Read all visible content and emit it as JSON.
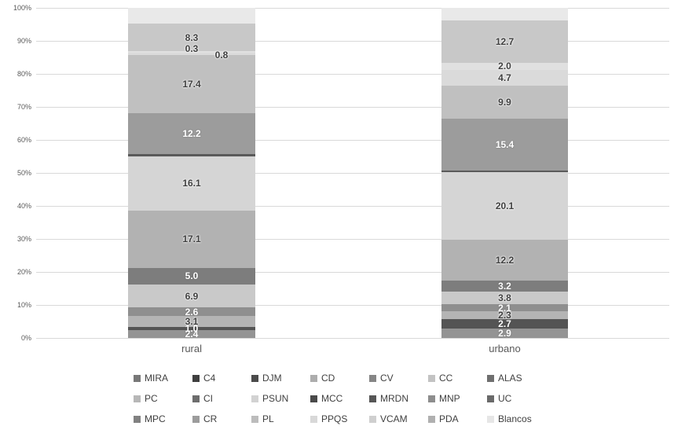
{
  "chart_data": {
    "type": "stacked_bar_100",
    "title": "",
    "categories": [
      "rural",
      "urbano"
    ],
    "y_axis": {
      "ticks": [
        "0%",
        "10%",
        "20%",
        "30%",
        "40%",
        "50%",
        "60%",
        "70%",
        "80%",
        "90%",
        "100%"
      ],
      "min": 0,
      "max": 100,
      "grid": true
    },
    "bars": [
      {
        "category": "rural",
        "segments": [
          {
            "series": "MIRA",
            "value": 2.4,
            "label": "2.4",
            "color": "#949494",
            "label_color": "#ffffff"
          },
          {
            "series": "C4",
            "value": 1.0,
            "label": "1.0",
            "color": "#545454",
            "label_color": "#ffffff"
          },
          {
            "series": "CD",
            "value": 3.1,
            "label": "3.1",
            "color": "#b4b4b4",
            "label_color": "#3f3f3f"
          },
          {
            "series": "CV",
            "value": 2.6,
            "label": "2.6",
            "color": "#8f8f8f",
            "label_color": "#ffffff"
          },
          {
            "series": "CC",
            "value": 6.9,
            "label": "6.9",
            "color": "#c9c9c9",
            "label_color": "#3f3f3f"
          },
          {
            "series": "ALAS",
            "value": 5.0,
            "label": "5.0",
            "color": "#7d7d7d",
            "label_color": "#ffffff"
          },
          {
            "series": "PC",
            "value": 17.1,
            "label": "17.1",
            "color": "#b2b2b2",
            "label_color": "#3f3f3f"
          },
          {
            "series": "PSUN",
            "value": 16.1,
            "label": "16.1",
            "color": "#d5d5d5",
            "label_color": "#3f3f3f"
          },
          {
            "series": "MCC",
            "value": 0.7,
            "label": "",
            "color": "#5a5a5a",
            "label_color": "#ffffff"
          },
          {
            "series": "MNP",
            "value": 12.2,
            "label": "12.2",
            "color": "#9c9c9c",
            "label_color": "#ffffff"
          },
          {
            "series": "PL",
            "value": 17.4,
            "label": "17.4",
            "color": "#c0c0c0",
            "label_color": "#3f3f3f"
          },
          {
            "series": "PPQS",
            "value": 0.8,
            "label": "0.8",
            "color": "#dadada",
            "label_color": "#3f3f3f",
            "dx": 38,
            "dy": 2
          },
          {
            "series": "VCAM",
            "value": 0.3,
            "label": "0.3",
            "color": "#e0e0e0",
            "label_color": "#3f3f3f",
            "dy": -4
          },
          {
            "series": "PDA",
            "value": 8.3,
            "label": "8.3",
            "color": "#c8c8c8",
            "label_color": "#3f3f3f"
          },
          {
            "series": "Blancos",
            "value": 4.7,
            "label": "",
            "color": "#e9e9e9",
            "label_color": "#3f3f3f"
          }
        ]
      },
      {
        "category": "urbano",
        "segments": [
          {
            "series": "MIRA",
            "value": 2.9,
            "label": "2.9",
            "color": "#949494",
            "label_color": "#ffffff"
          },
          {
            "series": "C4",
            "value": 2.7,
            "label": "2.7",
            "color": "#545454",
            "label_color": "#ffffff"
          },
          {
            "series": "CD",
            "value": 2.3,
            "label": "2.3",
            "color": "#b4b4b4",
            "label_color": "#3f3f3f"
          },
          {
            "series": "CV",
            "value": 2.1,
            "label": "2.1",
            "color": "#8f8f8f",
            "label_color": "#ffffff"
          },
          {
            "series": "CC",
            "value": 3.8,
            "label": "3.8",
            "color": "#c9c9c9",
            "label_color": "#3f3f3f"
          },
          {
            "series": "ALAS",
            "value": 3.2,
            "label": "3.2",
            "color": "#7d7d7d",
            "label_color": "#ffffff"
          },
          {
            "series": "PC",
            "value": 12.2,
            "label": "12.2",
            "color": "#b2b2b2",
            "label_color": "#3f3f3f"
          },
          {
            "series": "PSUN",
            "value": 20.1,
            "label": "20.1",
            "color": "#d5d5d5",
            "label_color": "#3f3f3f"
          },
          {
            "series": "MCC",
            "value": 0.6,
            "label": "",
            "color": "#5a5a5a",
            "label_color": "#ffffff"
          },
          {
            "series": "MNP",
            "value": 15.4,
            "label": "15.4",
            "color": "#9c9c9c",
            "label_color": "#ffffff"
          },
          {
            "series": "PL",
            "value": 9.9,
            "label": "9.9",
            "color": "#c0c0c0",
            "label_color": "#3f3f3f"
          },
          {
            "series": "PPQS",
            "value": 4.7,
            "label": "4.7",
            "color": "#dadada",
            "label_color": "#3f3f3f"
          },
          {
            "series": "VCAM",
            "value": 2.0,
            "label": "2.0",
            "color": "#e0e0e0",
            "label_color": "#3f3f3f"
          },
          {
            "series": "PDA",
            "value": 12.7,
            "label": "12.7",
            "color": "#c8c8c8",
            "label_color": "#3f3f3f"
          },
          {
            "series": "Blancos",
            "value": 3.7,
            "label": "",
            "color": "#e9e9e9",
            "label_color": "#3f3f3f"
          }
        ]
      }
    ],
    "legend": {
      "position": "bottom",
      "entries": [
        {
          "name": "MIRA",
          "color": "#787878"
        },
        {
          "name": "C4",
          "color": "#3f3f3f"
        },
        {
          "name": "DJM",
          "color": "#4b4b4b"
        },
        {
          "name": "CD",
          "color": "#adadad"
        },
        {
          "name": "CV",
          "color": "#868686"
        },
        {
          "name": "CC",
          "color": "#c3c3c3"
        },
        {
          "name": "ALAS",
          "color": "#6f6f6f"
        },
        {
          "name": "PC",
          "color": "#b7b7b7"
        },
        {
          "name": "CI",
          "color": "#6d6d6d"
        },
        {
          "name": "PSUN",
          "color": "#d2d2d2"
        },
        {
          "name": "MCC",
          "color": "#4a4a4a"
        },
        {
          "name": "MRDN",
          "color": "#565656"
        },
        {
          "name": "MNP",
          "color": "#8d8d8d"
        },
        {
          "name": "UC",
          "color": "#6a6a6a"
        },
        {
          "name": "MPC",
          "color": "#818181"
        },
        {
          "name": "CR",
          "color": "#9c9c9c"
        },
        {
          "name": "PL",
          "color": "#bcbcbc"
        },
        {
          "name": "PPQS",
          "color": "#d8d8d8"
        },
        {
          "name": "VCAM",
          "color": "#cfcfcf"
        },
        {
          "name": "PDA",
          "color": "#b0b0b0"
        },
        {
          "name": "Blancos",
          "color": "#e6e6e6"
        }
      ]
    }
  }
}
